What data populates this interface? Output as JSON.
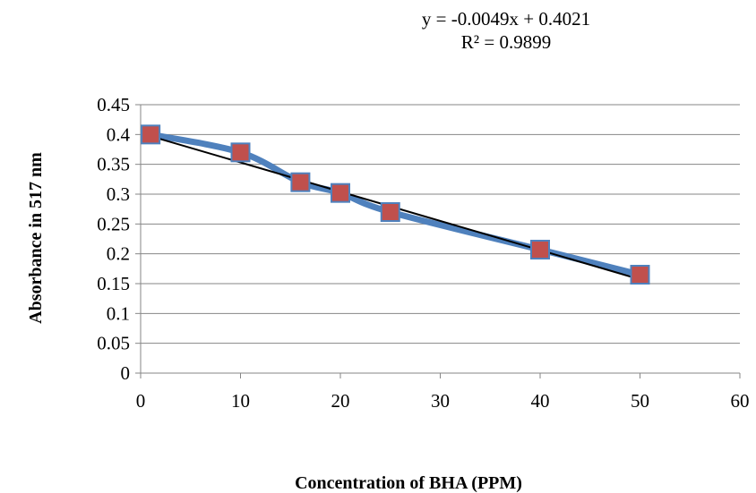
{
  "trendline": {
    "equation": "y = -0.0049x + 0.4021",
    "r_squared": "R² = 0.9899",
    "slope": -0.0049,
    "intercept": 0.4021,
    "color": "#000000"
  },
  "chart_data": {
    "type": "scatter",
    "title": "",
    "xlabel": "Concentration of BHA (PPM)",
    "ylabel": "Absorbance in 517 nm",
    "xlim": [
      0,
      60
    ],
    "ylim": [
      0,
      0.45
    ],
    "x_ticks": [
      0,
      10,
      20,
      30,
      40,
      50,
      60
    ],
    "y_ticks": [
      0,
      0.05,
      0.1,
      0.15,
      0.2,
      0.25,
      0.3,
      0.35,
      0.4,
      0.45
    ],
    "x_tick_labels": [
      "0",
      "10",
      "20",
      "30",
      "40",
      "50",
      "60"
    ],
    "y_tick_labels": [
      "0",
      "0.05",
      "0.1",
      "0.15",
      "0.2",
      "0.25",
      "0.3",
      "0.35",
      "0.4",
      "0.45"
    ],
    "grid": "horizontal",
    "legend": "none",
    "series": [
      {
        "x": [
          1,
          10,
          16,
          20,
          25,
          40,
          50
        ],
        "values": [
          0.4,
          0.37,
          0.32,
          0.302,
          0.27,
          0.207,
          0.165
        ],
        "line_color": "#4f81bd",
        "marker_fill": "#c0504d",
        "marker_shape": "square"
      }
    ]
  }
}
